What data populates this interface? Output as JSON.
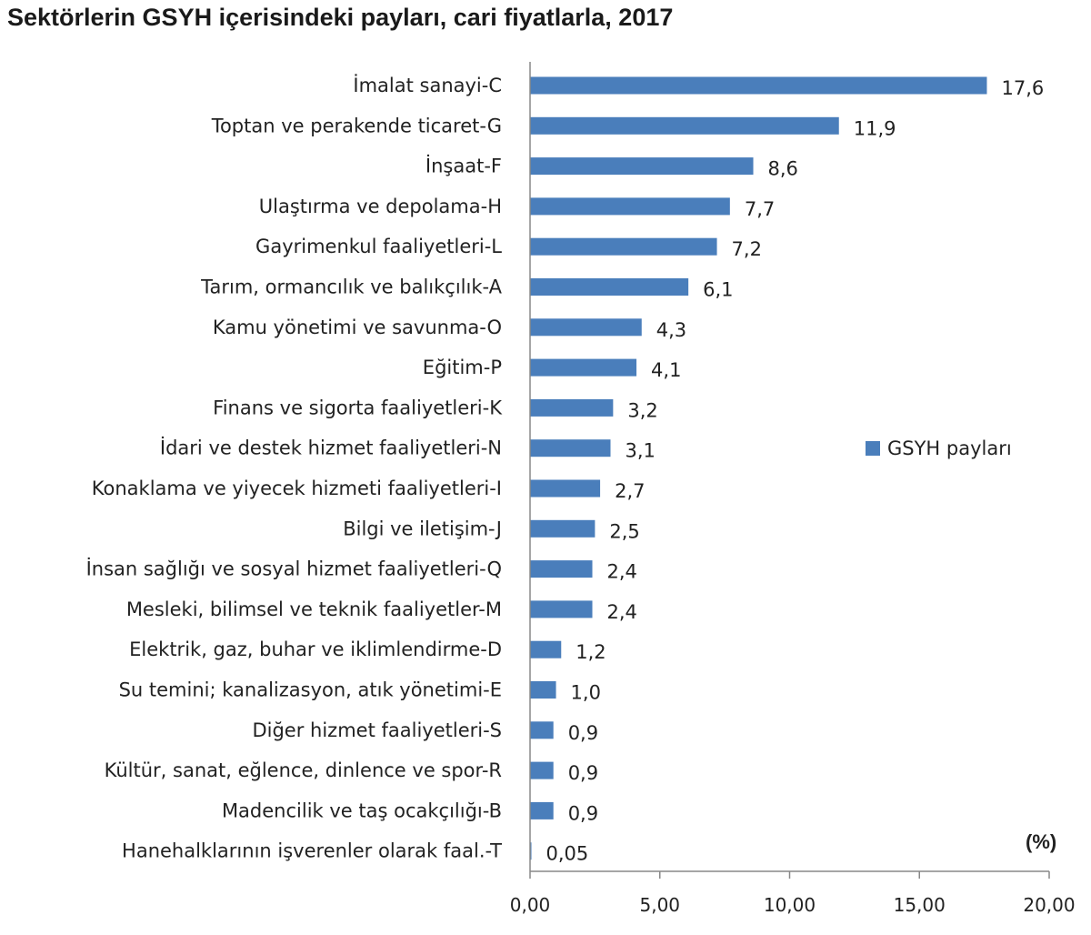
{
  "chart_data": {
    "type": "bar",
    "orientation": "horizontal",
    "title": "Sektörlerin GSYH içerisindeki payları, cari fiyatlarla, 2017",
    "categories": [
      "İmalat sanayi-C",
      "Toptan ve perakende ticaret-G",
      "İnşaat-F",
      "Ulaştırma ve depolama-H",
      "Gayrimenkul faaliyetleri-L",
      "Tarım, ormancılık ve balıkçılık-A",
      "Kamu yönetimi ve savunma-O",
      "Eğitim-P",
      "Finans ve sigorta faaliyetleri-K",
      "İdari ve destek hizmet faaliyetleri-N",
      "Konaklama ve yiyecek hizmeti faaliyetleri-I",
      "Bilgi ve iletişim-J",
      "İnsan sağlığı ve sosyal hizmet faaliyetleri-Q",
      "Mesleki, bilimsel ve teknik faaliyetler-M",
      "Elektrik, gaz, buhar ve iklimlendirme-D",
      "Su temini; kanalizasyon, atık yönetimi-E",
      "Diğer hizmet faaliyetleri-S",
      "Kültür, sanat, eğlence, dinlence ve spor-R",
      "Madencilik ve taş ocakçılığı-B",
      "Hanehalklarının işverenler olarak faal.-T"
    ],
    "series": [
      {
        "name": "GSYH payları",
        "values": [
          17.6,
          11.9,
          8.6,
          7.7,
          7.2,
          6.1,
          4.3,
          4.1,
          3.2,
          3.1,
          2.7,
          2.5,
          2.4,
          2.4,
          1.2,
          1.0,
          0.9,
          0.9,
          0.9,
          0.05
        ],
        "value_labels": [
          "17,6",
          "11,9",
          "8,6",
          "7,7",
          "7,2",
          "6,1",
          "4,3",
          "4,1",
          "3,2",
          "3,1",
          "2,7",
          "2,5",
          "2,4",
          "2,4",
          "1,2",
          "1,0",
          "0,9",
          "0,9",
          "0,9",
          "0,05"
        ],
        "color": "#4a7ebb"
      }
    ],
    "xlim": [
      0,
      20
    ],
    "xticks": [
      0,
      5,
      10,
      15,
      20
    ],
    "xtick_labels": [
      "0,00",
      "5,00",
      "10,00",
      "15,00",
      "20,00"
    ],
    "unit_label": "(%)",
    "grid": false,
    "legend_position": "right"
  }
}
